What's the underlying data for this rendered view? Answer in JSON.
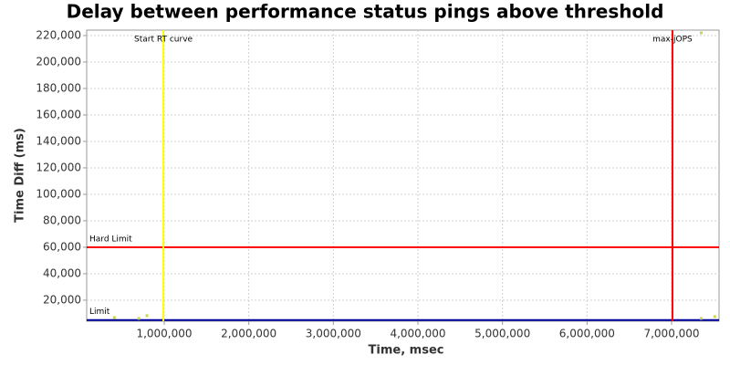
{
  "chart_data": {
    "type": "scatter",
    "title": "Delay between performance status pings above threshold",
    "x_label": "Time, msec",
    "y_label": "Time Diff (ms)",
    "xlim": [
      83000,
      7561000
    ],
    "ylim": [
      4100,
      224100
    ],
    "xticks": [
      {
        "value": 1000000,
        "label": "1,000,000"
      },
      {
        "value": 2000000,
        "label": "2,000,000"
      },
      {
        "value": 3000000,
        "label": "3,000,000"
      },
      {
        "value": 4000000,
        "label": "4,000,000"
      },
      {
        "value": 5000000,
        "label": "5,000,000"
      },
      {
        "value": 6000000,
        "label": "6,000,000"
      },
      {
        "value": 7000000,
        "label": "7,000,000"
      }
    ],
    "yticks": [
      {
        "value": 20000,
        "label": "20,000"
      },
      {
        "value": 40000,
        "label": "40,000"
      },
      {
        "value": 60000,
        "label": "60,000"
      },
      {
        "value": 80000,
        "label": "80,000"
      },
      {
        "value": 100000,
        "label": "100,000"
      },
      {
        "value": 120000,
        "label": "120,000"
      },
      {
        "value": 140000,
        "label": "140,000"
      },
      {
        "value": 160000,
        "label": "160,000"
      },
      {
        "value": 180000,
        "label": "180,000"
      },
      {
        "value": 200000,
        "label": "200,000"
      },
      {
        "value": 220000,
        "label": "220,000"
      }
    ],
    "grid": true,
    "points": {
      "color": "#c8d84a",
      "x": [
        410000,
        700000,
        795000,
        7350000,
        7510000,
        7350000
      ],
      "y": [
        6900,
        6200,
        8300,
        6200,
        7600,
        222000
      ]
    },
    "hlines": [
      {
        "label": "Hard Limit",
        "value": 60000,
        "color": "#ff0000"
      },
      {
        "label": "Limit",
        "value": 5000,
        "color": "#0000a0"
      }
    ],
    "vlines": [
      {
        "label": "Start RT curve",
        "value": 990000,
        "color": "#ffff00"
      },
      {
        "label": "max-jOPS",
        "value": 7010000,
        "color": "#ff0000"
      }
    ]
  }
}
